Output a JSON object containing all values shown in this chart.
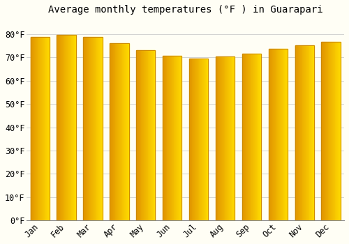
{
  "title": "Average monthly temperatures (°F ) in Guarapari",
  "months": [
    "Jan",
    "Feb",
    "Mar",
    "Apr",
    "May",
    "Jun",
    "Jul",
    "Aug",
    "Sep",
    "Oct",
    "Nov",
    "Dec"
  ],
  "values": [
    78.8,
    79.7,
    78.8,
    76.1,
    73.2,
    70.7,
    69.6,
    70.5,
    71.6,
    73.6,
    75.2,
    76.6
  ],
  "bar_color_main": "#FFAA00",
  "bar_color_light": "#FFD000",
  "bar_color_dark": "#E08000",
  "bar_edge_color": "#CC8800",
  "yticks": [
    0,
    10,
    20,
    30,
    40,
    50,
    60,
    70,
    80
  ],
  "yticklabels": [
    "0°F",
    "10°F",
    "20°F",
    "30°F",
    "40°F",
    "50°F",
    "60°F",
    "70°F",
    "80°F"
  ],
  "ylim": [
    0,
    86
  ],
  "bg_color": "#FFFEF5",
  "grid_color": "#CCCCCC",
  "title_fontsize": 10,
  "tick_fontsize": 8.5,
  "bar_width": 0.72
}
